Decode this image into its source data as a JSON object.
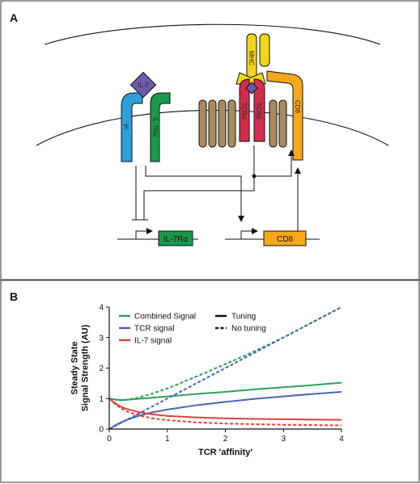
{
  "panel_a": {
    "label": "A",
    "molecules": {
      "il7": "IL-7",
      "gamma_c": "γc",
      "il7ra": "IL-7Rα",
      "mhc": "MHC",
      "tcr_alpha": "TCRα",
      "tcr_beta": "TCRβ",
      "cd8": "CD8"
    },
    "genes": {
      "il7ra_gene": "IL-7Rα",
      "cd8_gene": "CD8"
    },
    "colors": {
      "il7": "#6b5aa8",
      "gamma_c": "#2f9fd8",
      "il7ra": "#1a9a4a",
      "mhc": "#f2d518",
      "tcr": "#d42c4c",
      "cd8": "#f6a81a",
      "cd3": "#a88a5e"
    }
  },
  "panel_b": {
    "label": "B",
    "chart_data": {
      "type": "line",
      "xlabel": "TCR 'affinity'",
      "ylabel": "Steady State\nSignal Strength (AU)",
      "xlim": [
        0,
        4
      ],
      "ylim": [
        0,
        4
      ],
      "xticks": [
        "0",
        "1",
        "2",
        "3",
        "4"
      ],
      "yticks": [
        "0",
        "1",
        "2",
        "3",
        "4"
      ],
      "legend": [
        {
          "label": "Combined Signal",
          "color": "#2fa05a",
          "style": "solid"
        },
        {
          "label": "TCR signal",
          "color": "#4a66b0",
          "style": "solid"
        },
        {
          "label": "IL-7 signal",
          "color": "#e0413a",
          "style": "solid"
        },
        {
          "label": "Tuning",
          "color": "#111111",
          "style": "solid"
        },
        {
          "label": "No tuning",
          "color": "#111111",
          "style": "dashed"
        }
      ],
      "legend_placement": "top-left",
      "x": [
        0,
        0.1,
        0.2,
        0.3,
        0.5,
        0.75,
        1,
        1.5,
        2,
        2.5,
        3,
        3.5,
        4
      ],
      "series": [
        {
          "name": "Combined Signal",
          "mode": "Tuning",
          "color": "#2fa05a",
          "dashed": false,
          "values": [
            1.0,
            0.97,
            0.95,
            0.96,
            0.99,
            1.03,
            1.07,
            1.15,
            1.22,
            1.3,
            1.37,
            1.44,
            1.52
          ]
        },
        {
          "name": "TCR signal",
          "mode": "Tuning",
          "color": "#4a66b0",
          "dashed": false,
          "values": [
            0.0,
            0.12,
            0.22,
            0.3,
            0.43,
            0.55,
            0.64,
            0.78,
            0.89,
            0.99,
            1.07,
            1.15,
            1.22
          ]
        },
        {
          "name": "IL-7 signal",
          "mode": "Tuning",
          "color": "#e0413a",
          "dashed": false,
          "values": [
            1.0,
            0.85,
            0.73,
            0.66,
            0.56,
            0.48,
            0.43,
            0.38,
            0.35,
            0.33,
            0.32,
            0.31,
            0.3
          ]
        },
        {
          "name": "Combined Signal",
          "mode": "No tuning",
          "color": "#2fa05a",
          "dashed": true,
          "values": [
            1.0,
            0.96,
            0.94,
            0.96,
            1.03,
            1.17,
            1.33,
            1.72,
            2.13,
            2.55,
            3.0,
            3.5,
            4.0
          ]
        },
        {
          "name": "TCR signal",
          "mode": "No tuning",
          "color": "#4a66b0",
          "dashed": true,
          "values": [
            0.0,
            0.1,
            0.2,
            0.3,
            0.5,
            0.75,
            1.0,
            1.5,
            2.0,
            2.5,
            3.0,
            3.5,
            4.0
          ]
        },
        {
          "name": "IL-7 signal",
          "mode": "No tuning",
          "color": "#e0413a",
          "dashed": true,
          "values": [
            1.0,
            0.82,
            0.68,
            0.58,
            0.45,
            0.35,
            0.29,
            0.22,
            0.18,
            0.16,
            0.14,
            0.13,
            0.12
          ]
        }
      ]
    }
  }
}
